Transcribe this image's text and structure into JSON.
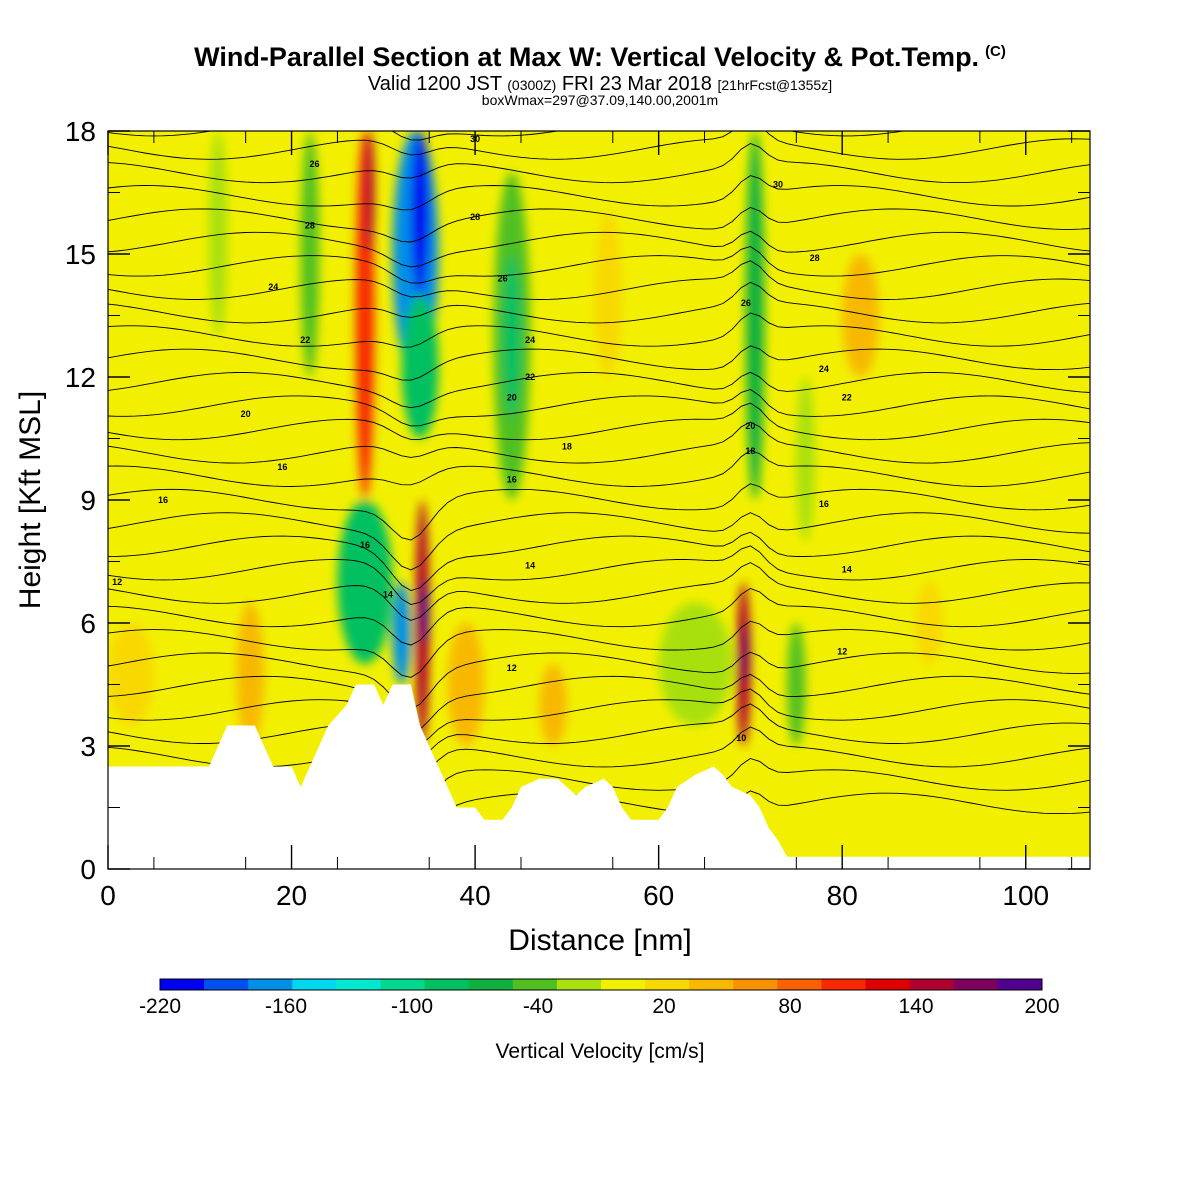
{
  "title": {
    "main": "Wind-Parallel Section at Max W: Vertical Velocity & Pot.Temp.",
    "copyright": "(C)",
    "valid_prefix": "Valid 1200 JST",
    "valid_utc": "(0300Z)",
    "valid_date": "FRI 23 Mar 2018",
    "forecast_info": "[21hrFcst@1355z]",
    "box_info": "boxWmax=297@37.09,140.00,2001m"
  },
  "chart_data": {
    "type": "heatmap",
    "xlabel": "Distance [nm]",
    "ylabel": "Height [Kft MSL]",
    "xlim": [
      0,
      107
    ],
    "ylim": [
      0,
      18
    ],
    "x_ticks": [
      0,
      20,
      40,
      60,
      80,
      100
    ],
    "y_ticks": [
      0,
      3,
      6,
      9,
      12,
      15,
      18
    ],
    "colorbar": {
      "label": "Vertical Velocity [cm/s]",
      "tick_labels": [
        "-220",
        "-160",
        "-100",
        "-40",
        "20",
        "80",
        "140",
        "200"
      ],
      "colors": [
        "#0000f0",
        "#0050f0",
        "#0090e8",
        "#00d8f0",
        "#00e8d0",
        "#00d890",
        "#00c060",
        "#10b040",
        "#50c020",
        "#a8e010",
        "#f0f000",
        "#f8d800",
        "#f8b800",
        "#f89000",
        "#f86000",
        "#f82800",
        "#e00000",
        "#b00030",
        "#800060",
        "#500090"
      ]
    },
    "velocity_cells": [
      {
        "x": [
          31,
          36
        ],
        "y": [
          12,
          18
        ],
        "value": -170
      },
      {
        "x": [
          33,
          35
        ],
        "y": [
          14,
          18
        ],
        "value": -215
      },
      {
        "x": [
          32,
          36
        ],
        "y": [
          10.5,
          14
        ],
        "value": -90
      },
      {
        "x": [
          27,
          29
        ],
        "y": [
          9,
          18
        ],
        "value": 110
      },
      {
        "x": [
          28,
          29
        ],
        "y": [
          15,
          18
        ],
        "value": 140
      },
      {
        "x": [
          33.5,
          35
        ],
        "y": [
          3,
          9
        ],
        "value": 140
      },
      {
        "x": [
          34,
          35
        ],
        "y": [
          5.5,
          7
        ],
        "value": 200
      },
      {
        "x": [
          25,
          31
        ],
        "y": [
          5,
          9
        ],
        "value": -80
      },
      {
        "x": [
          31,
          33
        ],
        "y": [
          4.5,
          7
        ],
        "value": -160
      },
      {
        "x": [
          42,
          46
        ],
        "y": [
          9,
          17
        ],
        "value": -50
      },
      {
        "x": [
          43,
          45
        ],
        "y": [
          11,
          15
        ],
        "value": -80
      },
      {
        "x": [
          68.5,
          70
        ],
        "y": [
          3,
          7
        ],
        "value": 140
      },
      {
        "x": [
          69,
          70
        ],
        "y": [
          4.5,
          6
        ],
        "value": 170
      },
      {
        "x": [
          69.5,
          71.5
        ],
        "y": [
          9,
          18
        ],
        "value": -70
      },
      {
        "x": [
          60,
          68
        ],
        "y": [
          3.5,
          6.5
        ],
        "value": -30
      },
      {
        "x": [
          21,
          23
        ],
        "y": [
          12,
          18
        ],
        "value": -40
      },
      {
        "x": [
          11,
          13
        ],
        "y": [
          13,
          18
        ],
        "value": -30
      },
      {
        "x": [
          74,
          76
        ],
        "y": [
          3,
          6
        ],
        "value": -40
      },
      {
        "x": [
          75,
          77
        ],
        "y": [
          8,
          12
        ],
        "value": -30
      },
      {
        "x": [
          14,
          17
        ],
        "y": [
          3,
          6.5
        ],
        "value": 40
      },
      {
        "x": [
          37,
          41
        ],
        "y": [
          3,
          6
        ],
        "value": 45
      },
      {
        "x": [
          47,
          50
        ],
        "y": [
          3,
          5
        ],
        "value": 40
      },
      {
        "x": [
          53,
          56
        ],
        "y": [
          12,
          16
        ],
        "value": 30
      },
      {
        "x": [
          80,
          84
        ],
        "y": [
          12,
          15
        ],
        "value": 35
      },
      {
        "x": [
          88,
          91
        ],
        "y": [
          5,
          7
        ],
        "value": 30
      },
      {
        "x": [
          0,
          5
        ],
        "y": [
          3.5,
          6
        ],
        "value": 25
      }
    ],
    "terrain": [
      [
        0,
        2.5
      ],
      [
        11,
        2.5
      ],
      [
        12,
        3
      ],
      [
        13,
        3.5
      ],
      [
        16,
        3.5
      ],
      [
        17,
        3
      ],
      [
        18,
        2.5
      ],
      [
        20,
        2.5
      ],
      [
        21,
        2
      ],
      [
        22,
        2.5
      ],
      [
        23,
        3
      ],
      [
        24,
        3.5
      ],
      [
        26,
        4
      ],
      [
        27,
        4.5
      ],
      [
        29,
        4.5
      ],
      [
        30,
        4
      ],
      [
        31,
        4.5
      ],
      [
        33,
        4.5
      ],
      [
        34,
        3.5
      ],
      [
        35,
        3
      ],
      [
        36,
        2.5
      ],
      [
        37,
        2
      ],
      [
        38,
        1.5
      ],
      [
        40,
        1.5
      ],
      [
        41,
        1.2
      ],
      [
        43,
        1.2
      ],
      [
        44,
        1.5
      ],
      [
        45,
        2
      ],
      [
        47,
        2.2
      ],
      [
        49,
        2.2
      ],
      [
        50,
        2
      ],
      [
        51,
        1.8
      ],
      [
        52,
        2
      ],
      [
        54,
        2.2
      ],
      [
        55,
        2
      ],
      [
        56,
        1.5
      ],
      [
        57,
        1.2
      ],
      [
        60,
        1.2
      ],
      [
        61,
        1.5
      ],
      [
        62,
        2
      ],
      [
        64,
        2.3
      ],
      [
        66,
        2.5
      ],
      [
        67,
        2.3
      ],
      [
        68,
        2
      ],
      [
        70,
        1.8
      ],
      [
        71,
        1.5
      ],
      [
        72,
        1
      ],
      [
        73,
        0.7
      ],
      [
        74,
        0.3
      ],
      [
        76,
        0.3
      ],
      [
        107,
        0.3
      ]
    ],
    "potential_temperature_labels": [
      {
        "text": "26",
        "x": 22.5,
        "y": 17.2
      },
      {
        "text": "30",
        "x": 40,
        "y": 17.8
      },
      {
        "text": "30",
        "x": 73,
        "y": 16.7
      },
      {
        "text": "28",
        "x": 22,
        "y": 15.7
      },
      {
        "text": "28",
        "x": 40,
        "y": 15.9
      },
      {
        "text": "28",
        "x": 77,
        "y": 14.9
      },
      {
        "text": "24",
        "x": 18,
        "y": 14.2
      },
      {
        "text": "26",
        "x": 43,
        "y": 14.4
      },
      {
        "text": "26",
        "x": 69.5,
        "y": 13.8
      },
      {
        "text": "22",
        "x": 21.5,
        "y": 12.9
      },
      {
        "text": "24",
        "x": 46,
        "y": 12.9
      },
      {
        "text": "24",
        "x": 78,
        "y": 12.2
      },
      {
        "text": "22",
        "x": 46,
        "y": 12
      },
      {
        "text": "22",
        "x": 80.5,
        "y": 11.5
      },
      {
        "text": "20",
        "x": 15,
        "y": 11.1
      },
      {
        "text": "20",
        "x": 44,
        "y": 11.5
      },
      {
        "text": "20",
        "x": 70,
        "y": 10.8
      },
      {
        "text": "18",
        "x": 50,
        "y": 10.3
      },
      {
        "text": "18",
        "x": 70,
        "y": 10.2
      },
      {
        "text": "16",
        "x": 19,
        "y": 9.8
      },
      {
        "text": "16",
        "x": 44,
        "y": 9.5
      },
      {
        "text": "16",
        "x": 6,
        "y": 9
      },
      {
        "text": "16",
        "x": 78,
        "y": 8.9
      },
      {
        "text": "16",
        "x": 28,
        "y": 7.9
      },
      {
        "text": "14",
        "x": 46,
        "y": 7.4
      },
      {
        "text": "14",
        "x": 80.5,
        "y": 7.3
      },
      {
        "text": "14",
        "x": 30.5,
        "y": 6.7
      },
      {
        "text": "12",
        "x": 1,
        "y": 7
      },
      {
        "text": "12",
        "x": 44,
        "y": 4.9
      },
      {
        "text": "12",
        "x": 80,
        "y": 5.3
      },
      {
        "text": "10",
        "x": 69,
        "y": 3.2
      }
    ]
  }
}
